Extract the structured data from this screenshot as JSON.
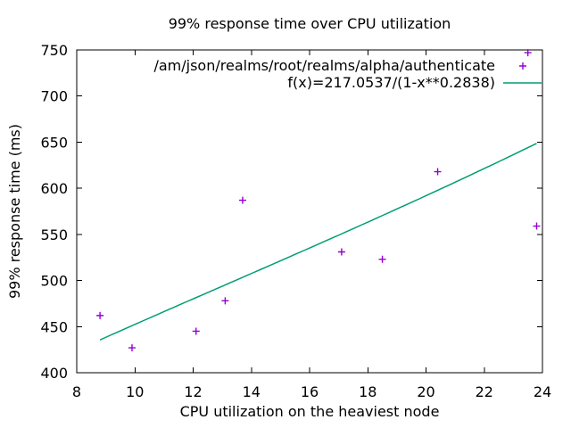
{
  "chart_data": {
    "type": "scatter",
    "title": "99% response time over CPU utilization",
    "xlabel": "CPU utilization on the heaviest node",
    "ylabel": "99% response time (ms)",
    "xlim": [
      8,
      24
    ],
    "ylim": [
      400,
      750
    ],
    "xticks": [
      8,
      10,
      12,
      14,
      16,
      18,
      20,
      22,
      24
    ],
    "yticks": [
      400,
      450,
      500,
      550,
      600,
      650,
      700,
      750
    ],
    "grid": false,
    "legend_position": "top-right-inside",
    "background": "#ffffff",
    "border_color": "#000000",
    "series": [
      {
        "name": "/am/json/realms/root/realms/alpha/authenticate",
        "type": "points",
        "marker": "plus",
        "color": "#9400d3",
        "points": [
          [
            8.8,
            462
          ],
          [
            9.9,
            427
          ],
          [
            12.1,
            445
          ],
          [
            13.1,
            478
          ],
          [
            13.7,
            587
          ],
          [
            17.1,
            531
          ],
          [
            18.5,
            523
          ],
          [
            20.4,
            618
          ],
          [
            23.5,
            747
          ],
          [
            23.8,
            559
          ]
        ]
      },
      {
        "name": "f(x)=217.0537/(1-x**0.2838)",
        "type": "line",
        "color": "#009e73",
        "formula": {
          "a": 217.0537,
          "b": 0.2838,
          "x_scale": 0.01
        },
        "x_range": [
          8.8,
          23.8
        ]
      }
    ]
  }
}
